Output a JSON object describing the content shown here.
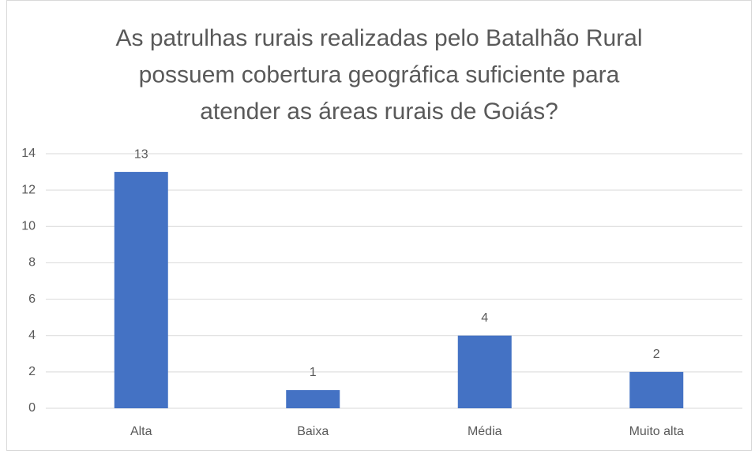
{
  "chart_data": {
    "type": "bar",
    "title": [
      "As patrulhas rurais realizadas pelo Batalhão Rural",
      "possuem cobertura geográfica suficiente para",
      "atender as áreas rurais de Goiás?"
    ],
    "categories": [
      "Alta",
      "Baixa",
      "Média",
      "Muito alta"
    ],
    "values": [
      13,
      1,
      4,
      2
    ],
    "color": "#4472c4",
    "ylim": [
      0,
      14
    ],
    "yticks": [
      0,
      2,
      4,
      6,
      8,
      10,
      12,
      14
    ],
    "grid": true
  }
}
